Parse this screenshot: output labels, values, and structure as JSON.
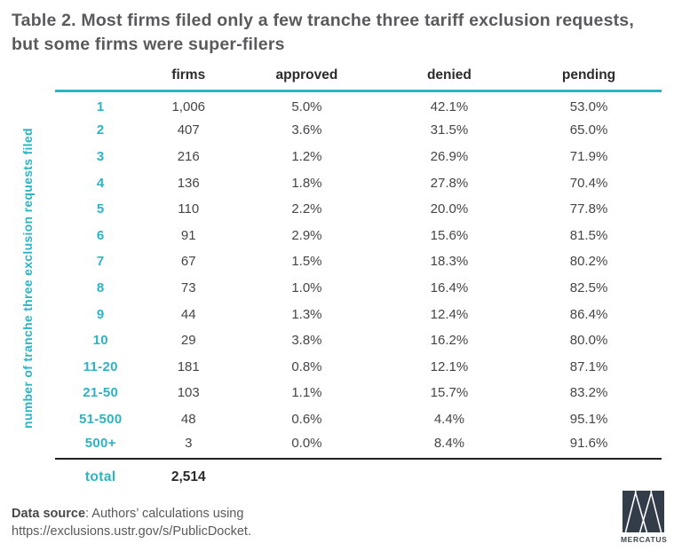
{
  "title": "Table 2. Most firms filed only a few tranche three tariff exclusion requests, but some firms were super-filers",
  "y_axis_label": "number of tranche three exclusion requests filed",
  "colors": {
    "teal_accent": "#2cb3c4",
    "title_gray": "#595a5c",
    "cell_text": "#454547",
    "heavy_rule": "#231f20",
    "logo_navy": "#333d4a"
  },
  "chart_data": {
    "type": "table",
    "title": "Table 2. Most firms filed only a few tranche three tariff exclusion requests, but some firms were super-filers",
    "row_axis_label": "number of tranche three exclusion requests filed",
    "headers": [
      "firms",
      "approved",
      "denied",
      "pending"
    ],
    "rows": [
      {
        "label": "1",
        "firms": "1,006",
        "approved": "5.0%",
        "denied": "42.1%",
        "pending": "53.0%"
      },
      {
        "label": "2",
        "firms": "407",
        "approved": "3.6%",
        "denied": "31.5%",
        "pending": "65.0%"
      },
      {
        "label": "3",
        "firms": "216",
        "approved": "1.2%",
        "denied": "26.9%",
        "pending": "71.9%"
      },
      {
        "label": "4",
        "firms": "136",
        "approved": "1.8%",
        "denied": "27.8%",
        "pending": "70.4%"
      },
      {
        "label": "5",
        "firms": "110",
        "approved": "2.2%",
        "denied": "20.0%",
        "pending": "77.8%"
      },
      {
        "label": "6",
        "firms": "91",
        "approved": "2.9%",
        "denied": "15.6%",
        "pending": "81.5%"
      },
      {
        "label": "7",
        "firms": "67",
        "approved": "1.5%",
        "denied": "18.3%",
        "pending": "80.2%"
      },
      {
        "label": "8",
        "firms": "73",
        "approved": "1.0%",
        "denied": "16.4%",
        "pending": "82.5%"
      },
      {
        "label": "9",
        "firms": "44",
        "approved": "1.3%",
        "denied": "12.4%",
        "pending": "86.4%"
      },
      {
        "label": "10",
        "firms": "29",
        "approved": "3.8%",
        "denied": "16.2%",
        "pending": "80.0%"
      },
      {
        "label": "11-20",
        "firms": "181",
        "approved": "0.8%",
        "denied": "12.1%",
        "pending": "87.1%"
      },
      {
        "label": "21-50",
        "firms": "103",
        "approved": "1.1%",
        "denied": "15.7%",
        "pending": "83.2%"
      },
      {
        "label": "51-500",
        "firms": "48",
        "approved": "0.6%",
        "denied": "4.4%",
        "pending": "95.1%"
      },
      {
        "label": "500+",
        "firms": "3",
        "approved": "0.0%",
        "denied": "8.4%",
        "pending": "91.6%"
      }
    ],
    "total": {
      "label": "total",
      "firms": "2,514"
    }
  },
  "footer": {
    "source_bold": "Data source",
    "source_rest": ": Authors’ calculations using",
    "source_line2": "https://exclusions.ustr.gov/s/PublicDocket.",
    "logo_text": "MERCATUS"
  }
}
